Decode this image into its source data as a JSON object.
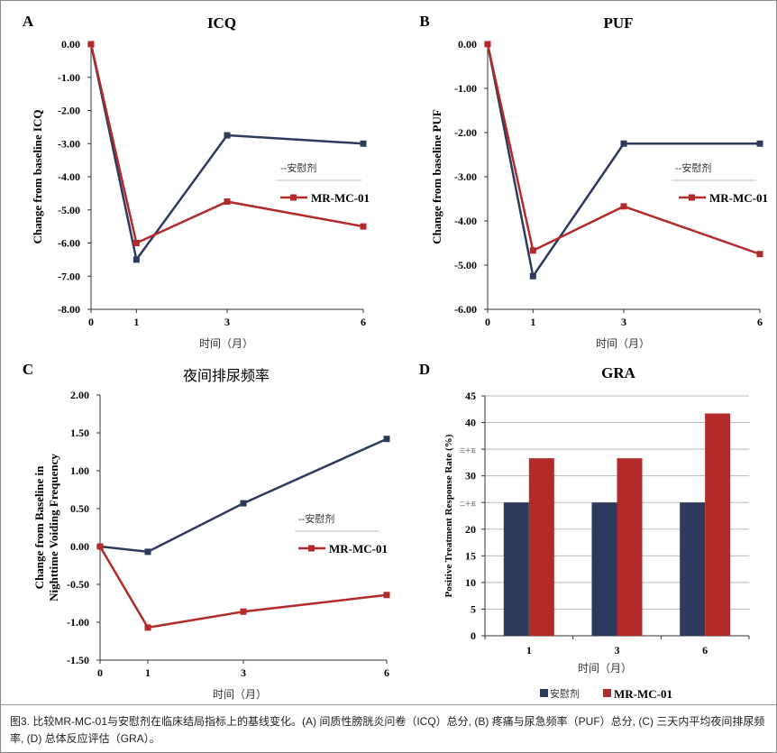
{
  "chart_data": [
    {
      "panel": "A",
      "type": "line",
      "title": "ICQ",
      "xlabel": "时间（月）",
      "ylabel": "Change from baseline ICQ",
      "categories": [
        "0",
        "1",
        "3",
        "6"
      ],
      "x": [
        0,
        1,
        3,
        6
      ],
      "ylim": [
        -8,
        0
      ],
      "yticks": [
        "0.00",
        "-1.00",
        "-2.00",
        "-3.00",
        "-4.00",
        "-5.00",
        "-6.00",
        "-7.00",
        "-8.00"
      ],
      "grid": false,
      "legend": "right",
      "series": [
        {
          "name": "--安慰剂",
          "color": "#2e3a5c",
          "values": [
            0,
            -6.5,
            -2.75,
            -3.0
          ]
        },
        {
          "name": "MR-MC-01",
          "color": "#b22a2a",
          "values": [
            0,
            -6.0,
            -4.75,
            -5.5
          ]
        }
      ]
    },
    {
      "panel": "B",
      "type": "line",
      "title": "PUF",
      "xlabel": "时间（月）",
      "ylabel": "Change from baseline PUF",
      "categories": [
        "0",
        "1",
        "3",
        "6"
      ],
      "x": [
        0,
        1,
        3,
        6
      ],
      "ylim": [
        -6,
        0
      ],
      "yticks": [
        "0.00",
        "-1.00",
        "-2.00",
        "-3.00",
        "-4.00",
        "-5.00",
        "-6.00"
      ],
      "grid": false,
      "legend": "right",
      "series": [
        {
          "name": "--安慰剂",
          "color": "#2e3a5c",
          "values": [
            0,
            -5.25,
            -2.25,
            -2.25
          ]
        },
        {
          "name": "MR-MC-01",
          "color": "#b22a2a",
          "values": [
            0,
            -4.67,
            -3.67,
            -4.75
          ]
        }
      ]
    },
    {
      "panel": "C",
      "type": "line",
      "title": "夜间排尿频率",
      "xlabel": "时间（月）",
      "ylabel": "Change from Baseline in Nighttime Voiding Frequency",
      "categories": [
        "0",
        "1",
        "3",
        "6"
      ],
      "x": [
        0,
        1,
        3,
        6
      ],
      "ylim": [
        -1.5,
        2
      ],
      "yticks": [
        "2.00",
        "1.50",
        "1.00",
        "0.50",
        "0.00",
        "-0.50",
        "-1.00",
        "-1.50"
      ],
      "grid": false,
      "legend": "right",
      "series": [
        {
          "name": "--安慰剂",
          "color": "#2e3a5c",
          "values": [
            0,
            -0.07,
            0.57,
            1.42
          ]
        },
        {
          "name": "MR-MC-01",
          "color": "#b22a2a",
          "values": [
            0,
            -1.07,
            -0.86,
            -0.64
          ]
        }
      ]
    },
    {
      "panel": "D",
      "type": "bar",
      "title": "GRA",
      "xlabel": "时间（月）",
      "ylabel": "Positive Treatment Response Rate (%)",
      "categories": [
        "1",
        "3",
        "6"
      ],
      "ylim": [
        0,
        45
      ],
      "yticks": [
        "45",
        "40",
        "三十五",
        "30",
        "二十五",
        "20",
        "15",
        "10",
        "5",
        "0"
      ],
      "grid": true,
      "legend": "bottom",
      "series": [
        {
          "name": "安慰剂",
          "color": "#2e3a5c",
          "values": [
            25,
            25,
            25
          ]
        },
        {
          "name": "MR-MC-01",
          "color": "#b22a2a",
          "values": [
            33.3,
            33.3,
            41.7
          ]
        }
      ]
    }
  ],
  "caption": "图3. 比较MR-MC-01与安慰剂在临床结局指标上的基线变化。(A) 间质性膀胱炎问卷（ICQ）总分, (B) 疼痛与尿急频率（PUF）总分, (C) 三天内平均夜间排尿频率, (D) 总体反应评估（GRA）。"
}
